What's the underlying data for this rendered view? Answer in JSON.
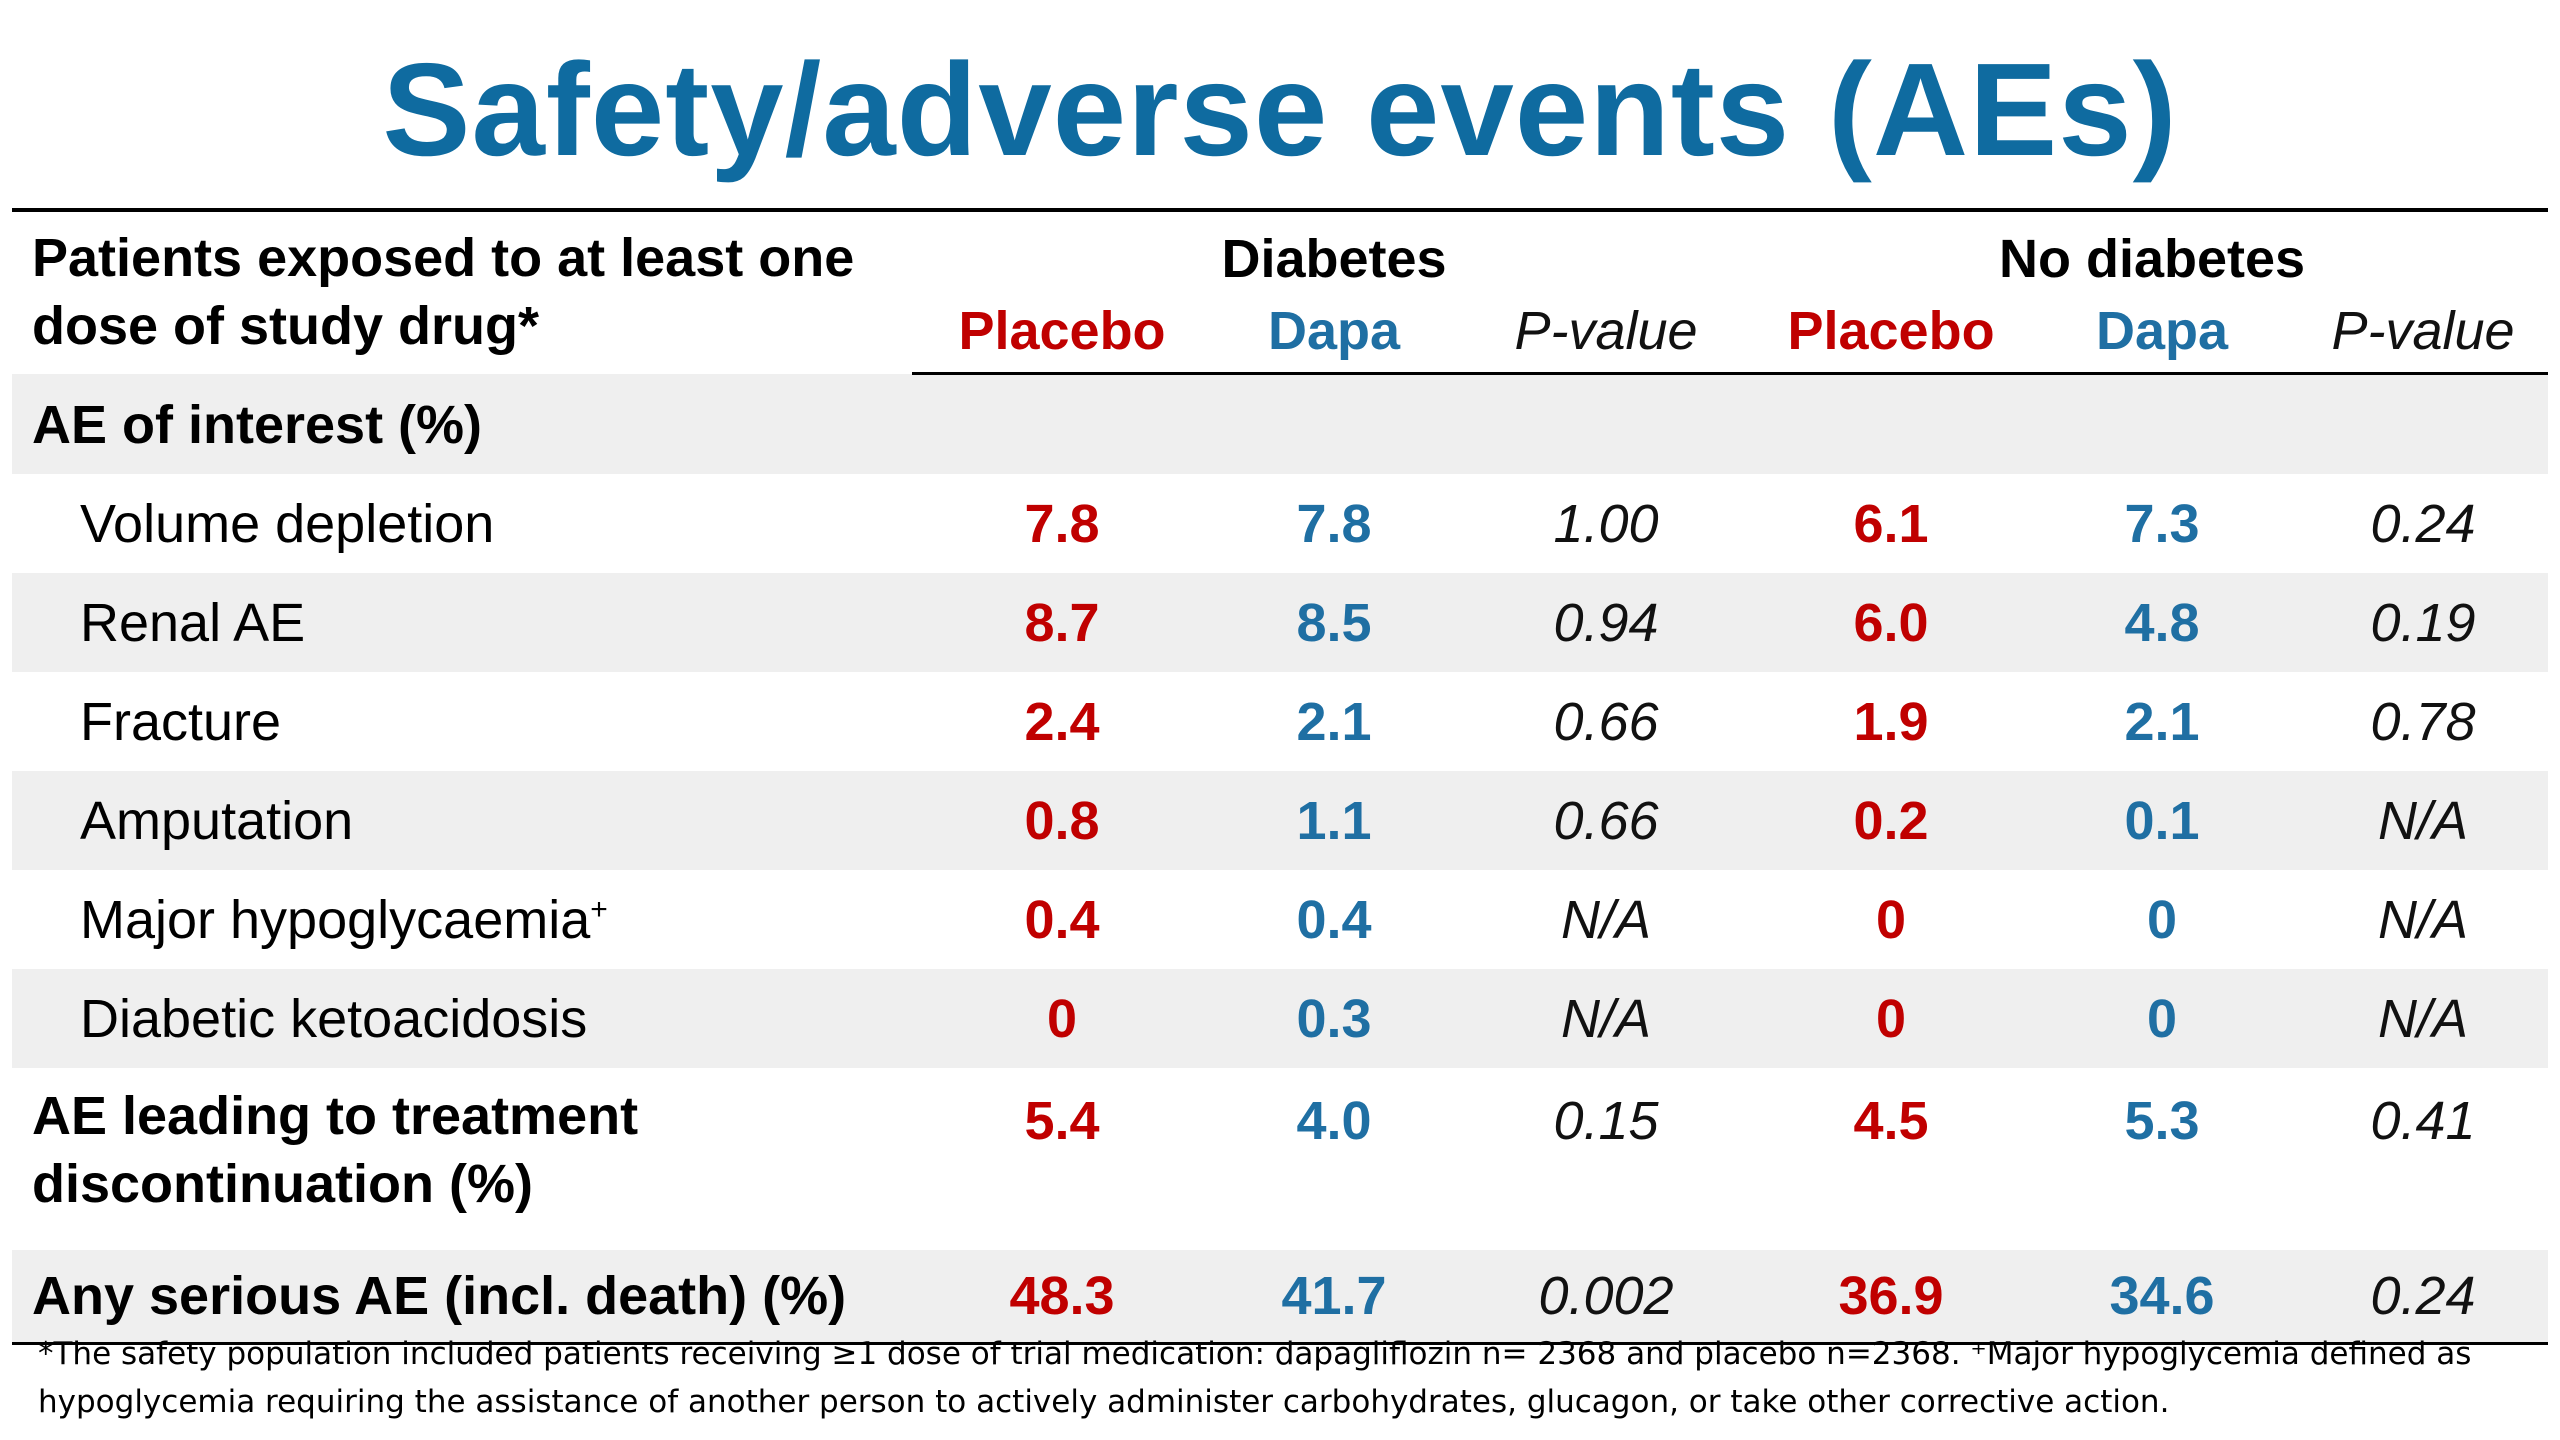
{
  "title": "Safety/adverse events (AEs)",
  "header": {
    "population_label": "Patients exposed to at least one dose of study drug*",
    "group_diabetes": "Diabetes",
    "group_no_diabetes": "No diabetes",
    "placebo": "Placebo",
    "dapa": "Dapa",
    "pvalue": "P-value"
  },
  "section_label": "AE of interest (%)",
  "rows": [
    {
      "label": "Volume depletion",
      "values": [
        "7.8",
        "7.8",
        "1.00",
        "6.1",
        "7.3",
        "0.24"
      ]
    },
    {
      "label": "Renal AE",
      "values": [
        "8.7",
        "8.5",
        "0.94",
        "6.0",
        "4.8",
        "0.19"
      ]
    },
    {
      "label": "Fracture",
      "values": [
        "2.4",
        "2.1",
        "0.66",
        "1.9",
        "2.1",
        "0.78"
      ]
    },
    {
      "label": "Amputation",
      "values": [
        "0.8",
        "1.1",
        "0.66",
        "0.2",
        "0.1",
        "N/A"
      ]
    },
    {
      "label": "Major hypoglycaemia",
      "label_mark": "+",
      "values": [
        "0.4",
        "0.4",
        "N/A",
        "0",
        "0",
        "N/A"
      ]
    },
    {
      "label": "Diabetic ketoacidosis",
      "values": [
        "0",
        "0.3",
        "N/A",
        "0",
        "0",
        "N/A"
      ]
    }
  ],
  "discontinuation": {
    "label": "AE leading to treatment discontinuation (%)",
    "values": [
      "5.4",
      "4.0",
      "0.15",
      "4.5",
      "5.3",
      "0.41"
    ]
  },
  "serious": {
    "label": "Any serious AE (incl. death) (%)",
    "values": [
      "48.3",
      "41.7",
      "0.002",
      "36.9",
      "34.6",
      "0.24"
    ]
  },
  "footnote": "*The safety population included patients receiving ≥1 dose of trial medication: dapagliflozin n= 2368 and placebo n=2368. ⁺Major hypoglycemia defined as hypoglycemia requiring the assistance of another person to actively administer carbohydrates, glucagon, or take other corrective action.",
  "colors": {
    "title": "#0f6ba0",
    "placebo": "#c00000",
    "dapa": "#1f6fa3",
    "row_shade": "#efefef"
  }
}
